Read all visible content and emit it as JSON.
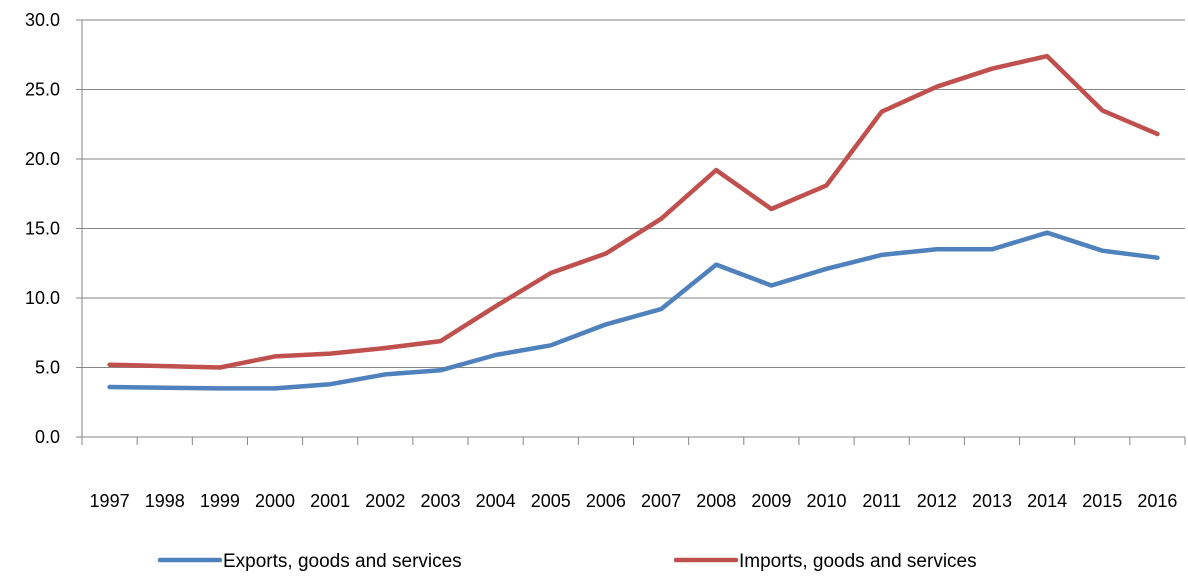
{
  "chart_data": {
    "type": "line",
    "categories": [
      "1997",
      "1998",
      "1999",
      "2000",
      "2001",
      "2002",
      "2003",
      "2004",
      "2005",
      "2006",
      "2007",
      "2008",
      "2009",
      "2010",
      "2011",
      "2012",
      "2013",
      "2014",
      "2015",
      "2016"
    ],
    "series": [
      {
        "name": "Exports, goods and services",
        "color": "#4F81BD",
        "values": [
          3.6,
          3.55,
          3.5,
          3.5,
          3.8,
          4.5,
          4.8,
          5.9,
          6.6,
          8.1,
          9.2,
          12.4,
          10.9,
          12.1,
          13.1,
          13.5,
          13.5,
          14.7,
          13.4,
          12.9
        ]
      },
      {
        "name": "Imports, goods and services",
        "color": "#C0504D",
        "values": [
          5.2,
          5.1,
          5.0,
          5.8,
          6.0,
          6.4,
          6.9,
          9.4,
          11.8,
          13.2,
          15.7,
          19.2,
          16.4,
          18.1,
          23.4,
          25.2,
          26.5,
          27.4,
          23.5,
          21.8
        ]
      }
    ],
    "y_ticks": [
      "0.0",
      "5.0",
      "10.0",
      "15.0",
      "20.0",
      "25.0",
      "30.0"
    ],
    "ylim": [
      0,
      30
    ],
    "grid": true,
    "legend_position": "bottom",
    "title": "",
    "xlabel": "",
    "ylabel": ""
  }
}
